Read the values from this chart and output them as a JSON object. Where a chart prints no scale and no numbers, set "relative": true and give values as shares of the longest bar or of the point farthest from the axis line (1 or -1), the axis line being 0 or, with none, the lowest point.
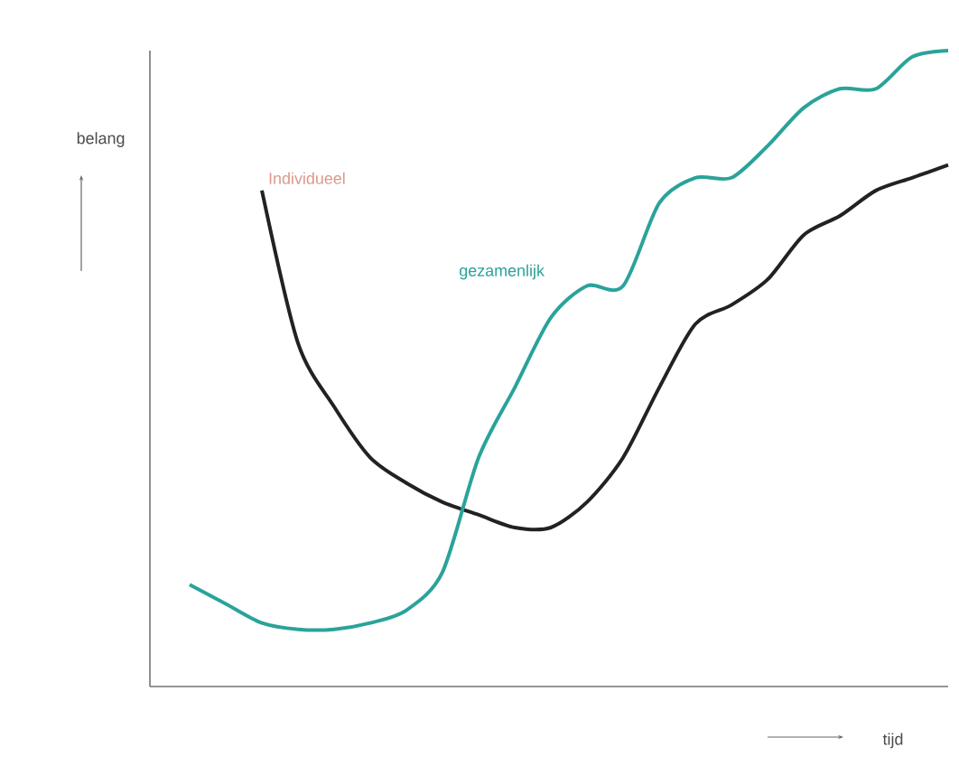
{
  "chart_data": {
    "type": "line",
    "relative": true,
    "xlabel": "tijd",
    "ylabel": "belang",
    "categories": [
      null,
      null,
      null,
      null,
      null,
      null,
      null,
      null,
      null,
      null,
      null,
      null,
      null,
      null,
      null,
      null,
      null,
      null,
      null,
      null,
      null,
      null
    ],
    "series": [
      {
        "name": "Individueel",
        "color": "#222222",
        "values": [
          null,
          null,
          0.78,
          0.54,
          0.44,
          0.36,
          0.32,
          0.29,
          0.27,
          0.25,
          0.25,
          0.29,
          0.36,
          0.47,
          0.57,
          0.6,
          0.64,
          0.71,
          0.74,
          0.78,
          0.8,
          0.82
        ]
      },
      {
        "name": "gezamenlijk",
        "color": "#2aa39a",
        "values": [
          0.16,
          0.13,
          0.1,
          0.09,
          0.09,
          0.1,
          0.12,
          0.18,
          0.36,
          0.47,
          0.58,
          0.63,
          0.63,
          0.76,
          0.8,
          0.8,
          0.85,
          0.91,
          0.94,
          0.94,
          0.99,
          1
        ]
      }
    ],
    "marker": "none",
    "line_style": "solid"
  }
}
